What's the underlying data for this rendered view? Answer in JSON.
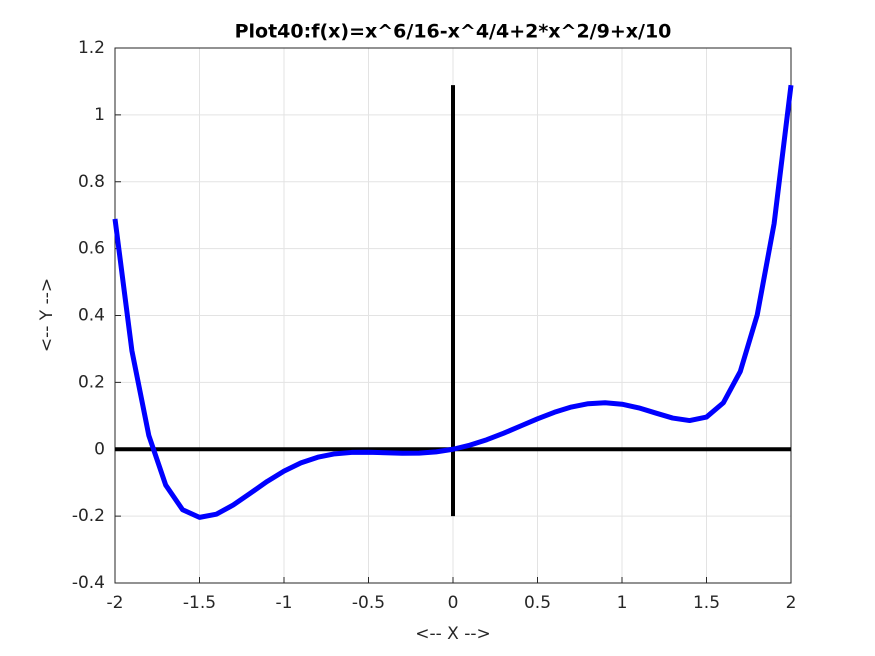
{
  "chart_data": {
    "type": "line",
    "title": "Plot40:f(x)=x^6/16-x^4/4+2*x^2/9+x/10",
    "xlabel": "<-- X -->",
    "ylabel": "<-- Y -->",
    "x": [
      -2,
      -1.9,
      -1.8,
      -1.7,
      -1.6,
      -1.5,
      -1.4,
      -1.3,
      -1.2,
      -1.1,
      -1,
      -0.9,
      -0.8,
      -0.7,
      -0.6,
      -0.5,
      -0.4,
      -0.3,
      -0.2,
      -0.1,
      0,
      0.1,
      0.2,
      0.3,
      0.4,
      0.5,
      0.6,
      0.7,
      0.8,
      0.9,
      1,
      1.1,
      1.2,
      1.3,
      1.4,
      1.5,
      1.6,
      1.7,
      1.8,
      1.9,
      2
    ],
    "series": [
      {
        "name": "f(x)",
        "color": "#0000ff",
        "values": [
          0.6889,
          0.2946,
          0.0414,
          -0.1072,
          -0.1809,
          -0.2037,
          -0.1942,
          -0.1667,
          -0.1318,
          -0.0964,
          -0.0653,
          -0.0408,
          -0.0238,
          -0.0138,
          -0.0095,
          -0.009,
          -0.0105,
          -0.012,
          -0.0115,
          -0.0078,
          0,
          0.0122,
          0.0285,
          0.048,
          0.0695,
          0.091,
          0.1105,
          0.1262,
          0.1362,
          0.1392,
          0.1347,
          0.1236,
          0.1082,
          0.0933,
          0.0858,
          0.0963,
          0.1391,
          0.2328,
          0.4014,
          0.6746,
          1.0889
        ]
      }
    ],
    "hline": {
      "y": 0,
      "color": "#000000"
    },
    "vline": {
      "x": 0,
      "ylim": [
        -0.2,
        1.0889
      ],
      "color": "#000000"
    },
    "xlim": [
      -2,
      2
    ],
    "ylim": [
      -0.4,
      1.2
    ],
    "xticks": [
      -2,
      -1.5,
      -1,
      -0.5,
      0,
      0.5,
      1,
      1.5,
      2
    ],
    "yticks": [
      -0.4,
      -0.2,
      0,
      0.2,
      0.4,
      0.6,
      0.8,
      1,
      1.2
    ],
    "grid": true
  }
}
